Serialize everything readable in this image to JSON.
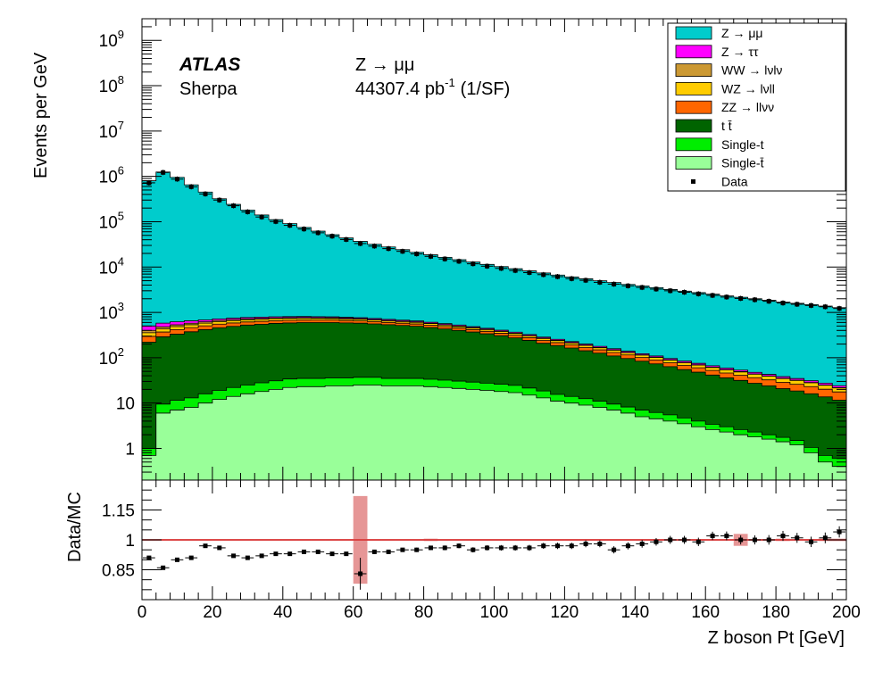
{
  "chart_data": {
    "type": "stacked-histogram",
    "title": "",
    "xlabel": "Z boson Pt [GeV]",
    "ylabel": "Events per GeV",
    "ratio_ylabel": "Data/MC",
    "x_range": [
      0,
      200
    ],
    "y_scale": "log",
    "y_range": [
      0.2,
      3000000000
    ],
    "ratio_range": [
      0.7,
      1.3
    ],
    "bin_width": 4,
    "bins": [
      0,
      4,
      8,
      12,
      16,
      20,
      24,
      28,
      32,
      36,
      40,
      44,
      48,
      52,
      56,
      60,
      64,
      68,
      72,
      76,
      80,
      84,
      88,
      92,
      96,
      100,
      104,
      108,
      112,
      116,
      120,
      124,
      128,
      132,
      136,
      140,
      144,
      148,
      152,
      156,
      160,
      164,
      168,
      172,
      176,
      180,
      184,
      188,
      192,
      196
    ],
    "x_ticks": [
      0,
      20,
      40,
      60,
      80,
      100,
      120,
      140,
      160,
      180,
      200
    ],
    "x_tick_labels": [
      "0",
      "20",
      "40",
      "60",
      "80",
      "100",
      "120",
      "140",
      "160",
      "180",
      "200"
    ],
    "y_ticks": [
      {
        "value": 1,
        "label": "1",
        "sup": ""
      },
      {
        "value": 10,
        "label": "10",
        "sup": ""
      },
      {
        "value": 100,
        "label": "10",
        "sup": "2"
      },
      {
        "value": 1000,
        "label": "10",
        "sup": "3"
      },
      {
        "value": 10000,
        "label": "10",
        "sup": "4"
      },
      {
        "value": 100000,
        "label": "10",
        "sup": "5"
      },
      {
        "value": 1000000,
        "label": "10",
        "sup": "6"
      },
      {
        "value": 10000000,
        "label": "10",
        "sup": "7"
      },
      {
        "value": 100000000,
        "label": "10",
        "sup": "8"
      },
      {
        "value": 1000000000,
        "label": "10",
        "sup": "9"
      }
    ],
    "ratio_ticks": [
      {
        "value": 0.85,
        "label": "0.85"
      },
      {
        "value": 1.0,
        "label": "1"
      },
      {
        "value": 1.15,
        "label": "1.15"
      }
    ],
    "annotations": {
      "experiment": "ATLAS",
      "generator": "Sherpa",
      "channel": "Z → μμ",
      "luminosity": "44307.4 pb",
      "luminosity_sup": "-1",
      "luminosity_note": "(1/SF)"
    },
    "series_cumulative": [
      {
        "name": "Single-t̄",
        "color": "#99ff99",
        "values": [
          0.7,
          6,
          7,
          8,
          10,
          12,
          14,
          16,
          18,
          20,
          22,
          23,
          23,
          24,
          24,
          25,
          25,
          24,
          24,
          24,
          23,
          22,
          21,
          20,
          19,
          18,
          17,
          15,
          13,
          11,
          10,
          9,
          8,
          7,
          6,
          5,
          4.5,
          4,
          3.5,
          3,
          2.6,
          2.3,
          2,
          1.8,
          1.6,
          1.4,
          1.2,
          0.8,
          0.5,
          0.4
        ]
      },
      {
        "name": "Single-t",
        "color": "#00ee00",
        "values": [
          0.3,
          3.5,
          4.5,
          5,
          6,
          7,
          8,
          9,
          10,
          11,
          12,
          12,
          12,
          12,
          12,
          12,
          12,
          11,
          11,
          11,
          10.5,
          10,
          9.5,
          9,
          8.5,
          8,
          7.5,
          6.5,
          5.5,
          4.5,
          4,
          3.5,
          3,
          2.5,
          2.2,
          2,
          1.7,
          1.5,
          1.2,
          1,
          0.8,
          0.7,
          0.6,
          0.5,
          0.4,
          0.35,
          0.3,
          0.25,
          0.2,
          0.2
        ]
      },
      {
        "name": "t t̄",
        "color": "#006400",
        "values": [
          220,
          280,
          320,
          360,
          400,
          440,
          470,
          500,
          520,
          540,
          550,
          560,
          560,
          560,
          550,
          540,
          520,
          500,
          480,
          460,
          430,
          400,
          370,
          340,
          310,
          280,
          250,
          220,
          190,
          170,
          150,
          130,
          115,
          100,
          88,
          77,
          67,
          58,
          50,
          44,
          38,
          33,
          29,
          25,
          22,
          19,
          17,
          15,
          13,
          11
        ]
      },
      {
        "name": "ZZ → llνν",
        "color": "#ff6600",
        "values": [
          75,
          80,
          85,
          88,
          90,
          92,
          92,
          90,
          88,
          86,
          84,
          82,
          80,
          78,
          75,
          72,
          69,
          66,
          63,
          60,
          57,
          54,
          50,
          47,
          44,
          41,
          38,
          35,
          32,
          30,
          27,
          25,
          23,
          21,
          19,
          17,
          16,
          14,
          13,
          12,
          11,
          10,
          9.5,
          9,
          8.5,
          8,
          7.5,
          7,
          6.5,
          6
        ]
      },
      {
        "name": "WZ → lνll",
        "color": "#ffcc00",
        "values": [
          60,
          65,
          70,
          72,
          74,
          75,
          75,
          74,
          72,
          70,
          68,
          66,
          64,
          62,
          60,
          58,
          55,
          52,
          50,
          48,
          45,
          42,
          40,
          37,
          35,
          32,
          30,
          27,
          25,
          23,
          21,
          19,
          17,
          16,
          14,
          13,
          12,
          11,
          10,
          9,
          8.5,
          8,
          7.5,
          7,
          6.5,
          6,
          5.5,
          5,
          4.5,
          4
        ]
      },
      {
        "name": "WW → lνlν",
        "color": "#cc9933",
        "values": [
          45,
          45,
          44,
          42,
          40,
          38,
          36,
          34,
          32,
          30,
          28,
          26,
          24,
          22,
          20,
          18,
          16,
          14,
          12,
          11,
          10,
          9,
          8,
          7,
          6,
          5.5,
          5,
          4.5,
          4,
          3.5,
          3,
          2.8,
          2.5,
          2.2,
          2,
          1.8,
          1.6,
          1.4,
          1.2,
          1.1,
          1,
          0.9,
          0.8,
          0.7,
          0.6,
          0.5,
          0.45,
          0.4,
          0.35,
          0.3
        ]
      },
      {
        "name": "Z → ττ",
        "color": "#ff00ff",
        "values": [
          100,
          100,
          90,
          75,
          62,
          55,
          50,
          48,
          46,
          44,
          43,
          42,
          41,
          40,
          39,
          38,
          37,
          36,
          35,
          33,
          31,
          29,
          27,
          25,
          23,
          21,
          19,
          17,
          15,
          13,
          12,
          11,
          10,
          9,
          8,
          7,
          6.5,
          6,
          5.5,
          5,
          4.6,
          4.2,
          3.9,
          3.6,
          3.3,
          3,
          2.8,
          2.6,
          2.4,
          2.2
        ]
      },
      {
        "name": "Z → μμ",
        "color": "#00cccc",
        "values": [
          800000,
          1250000,
          950000,
          650000,
          450000,
          320000,
          240000,
          180000,
          140000,
          110000,
          90000,
          74000,
          61000,
          51000,
          43000,
          36000,
          31000,
          27000,
          23500,
          20500,
          18000,
          15800,
          14000,
          12400,
          11000,
          9800,
          8800,
          7900,
          7100,
          6400,
          5800,
          5300,
          4800,
          4400,
          4000,
          3700,
          3400,
          3100,
          2850,
          2650,
          2450,
          2250,
          2100,
          1950,
          1800,
          1650,
          1550,
          1450,
          1350,
          1250
        ]
      }
    ],
    "data": {
      "name": "Data",
      "values": [
        720000,
        1220000,
        870000,
        590000,
        410000,
        300000,
        225000,
        165000,
        127000,
        101000,
        83000,
        69000,
        57000,
        48000,
        40500,
        33000,
        29000,
        25500,
        22200,
        19500,
        17200,
        15100,
        13400,
        11800,
        10450,
        9350,
        8400,
        7550,
        6800,
        6150,
        5550,
        5100,
        4600,
        4200,
        3850,
        3550,
        3270,
        3000,
        2780,
        2560,
        2370,
        2180,
        2030,
        1900,
        1760,
        1610,
        1510,
        1420,
        1330,
        1220
      ]
    },
    "ratio": {
      "values": [
        0.91,
        0.86,
        0.9,
        0.91,
        0.97,
        0.96,
        0.92,
        0.91,
        0.92,
        0.93,
        0.93,
        0.94,
        0.94,
        0.93,
        0.93,
        0.83,
        0.94,
        0.94,
        0.95,
        0.95,
        0.96,
        0.96,
        0.97,
        0.95,
        0.96,
        0.96,
        0.96,
        0.96,
        0.97,
        0.97,
        0.97,
        0.98,
        0.98,
        0.95,
        0.97,
        0.98,
        0.99,
        1.0,
        1.0,
        0.99,
        1.02,
        1.02,
        1.0,
        1.0,
        1.0,
        1.02,
        1.01,
        0.99,
        1.01,
        1.04
      ],
      "errors": [
        0.008,
        0.006,
        0.006,
        0.006,
        0.006,
        0.006,
        0.007,
        0.007,
        0.007,
        0.007,
        0.007,
        0.008,
        0.008,
        0.009,
        0.009,
        0.08,
        0.01,
        0.01,
        0.01,
        0.011,
        0.011,
        0.012,
        0.012,
        0.013,
        0.013,
        0.014,
        0.014,
        0.015,
        0.015,
        0.016,
        0.016,
        0.017,
        0.017,
        0.018,
        0.018,
        0.019,
        0.019,
        0.02,
        0.02,
        0.021,
        0.021,
        0.022,
        0.023,
        0.023,
        0.024,
        0.025,
        0.025,
        0.026,
        0.027,
        0.028
      ],
      "mc_unc": [
        0.004,
        0.004,
        0.004,
        0.004,
        0.004,
        0.004,
        0.004,
        0.004,
        0.004,
        0.004,
        0.004,
        0.004,
        0.004,
        0.004,
        0.004,
        0.22,
        0.004,
        0.004,
        0.004,
        0.004,
        0.006,
        0.004,
        0.004,
        0.004,
        0.004,
        0.004,
        0.004,
        0.004,
        0.004,
        0.004,
        0.004,
        0.004,
        0.004,
        0.004,
        0.004,
        0.004,
        0.004,
        0.004,
        0.004,
        0.004,
        0.004,
        0.004,
        0.03,
        0.004,
        0.004,
        0.006,
        0.004,
        0.004,
        0.006,
        0.006
      ]
    },
    "legend": {
      "position": "top-right",
      "entries": [
        {
          "label": "Z → μμ",
          "color": "#00cccc",
          "kind": "fill"
        },
        {
          "label": "Z → ττ",
          "color": "#ff00ff",
          "kind": "fill"
        },
        {
          "label": "WW → lνlν",
          "color": "#cc9933",
          "kind": "fill"
        },
        {
          "label": "WZ → lνll",
          "color": "#ffcc00",
          "kind": "fill"
        },
        {
          "label": "ZZ → llνν",
          "color": "#ff6600",
          "kind": "fill"
        },
        {
          "label": "t t̄",
          "color": "#006400",
          "kind": "fill"
        },
        {
          "label": "Single-t",
          "color": "#00ee00",
          "kind": "fill"
        },
        {
          "label": "Single-t̄",
          "color": "#99ff99",
          "kind": "fill"
        },
        {
          "label": "Data",
          "color": "#000000",
          "kind": "marker"
        }
      ]
    }
  }
}
